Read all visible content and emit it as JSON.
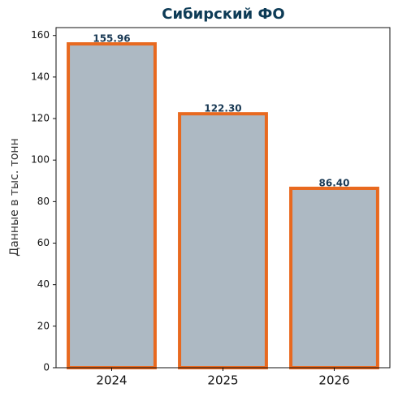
{
  "chart_data": {
    "type": "bar",
    "title": "Сибирский ФО",
    "y_label": "Данные в тыс. тонн",
    "categories": [
      "2024",
      "2025",
      "2026"
    ],
    "values": [
      155.96,
      122.3,
      86.4
    ],
    "value_labels": [
      "155.96",
      "122.30",
      "86.40"
    ],
    "color": "#adb9c3",
    "edge_color": "#e8691f",
    "ylim": [
      0,
      163.8
    ],
    "yticks": [
      0,
      20,
      40,
      60,
      80,
      100,
      120,
      140,
      160
    ],
    "grid": false
  }
}
